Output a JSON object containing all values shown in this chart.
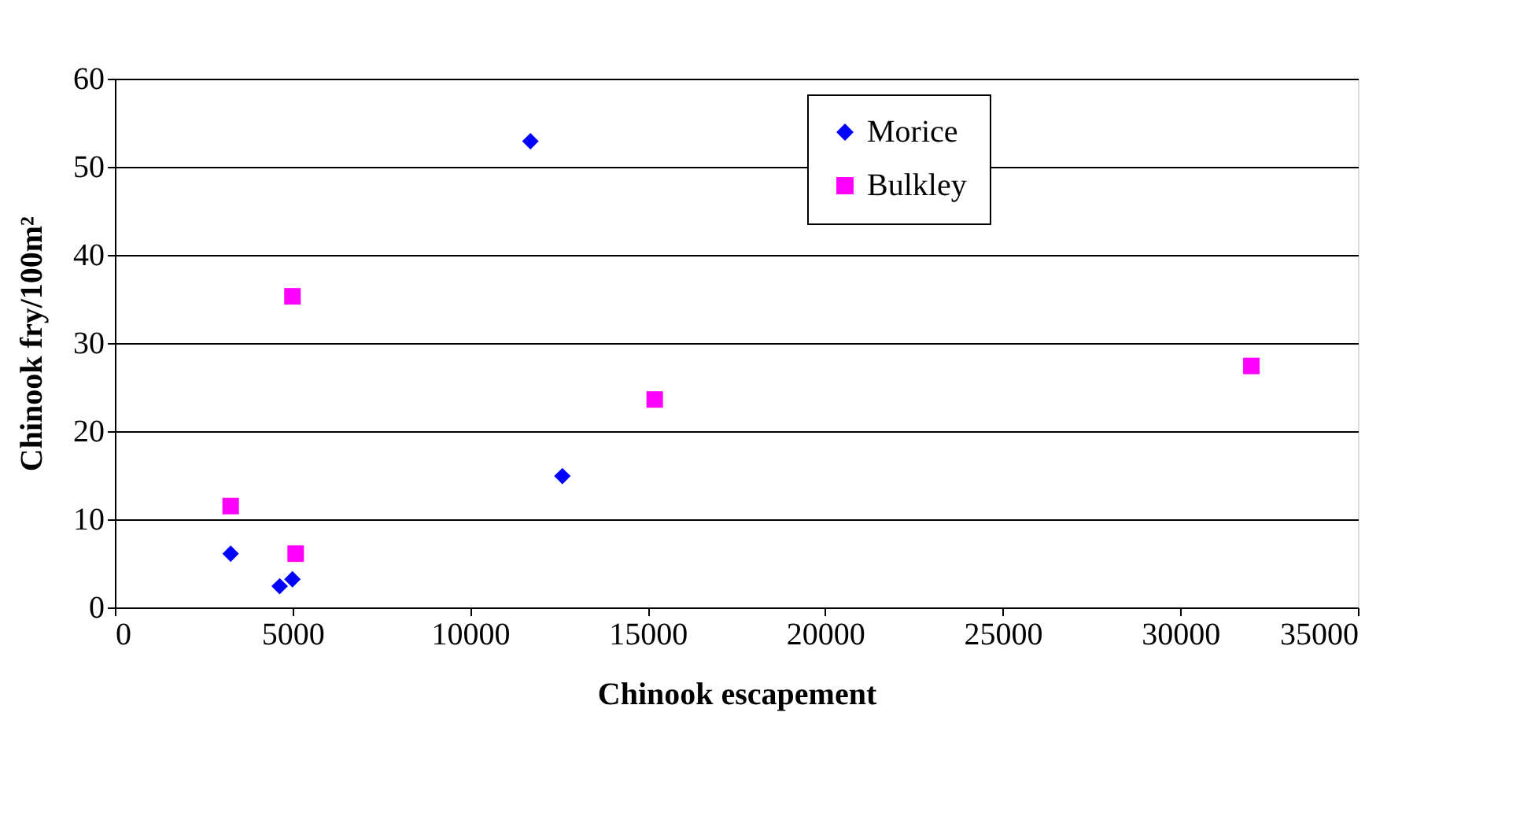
{
  "chart_data": {
    "type": "scatter",
    "xlabel": "Chinook escapement",
    "ylabel": "Chinook fry/100m²",
    "xlim": [
      0,
      35000
    ],
    "xticks": [
      0,
      5000,
      10000,
      15000,
      20000,
      25000,
      30000,
      35000
    ],
    "ylim": [
      0,
      60
    ],
    "yticks": [
      0,
      10,
      20,
      30,
      40,
      50,
      60
    ],
    "grid": "y",
    "legend": "top right",
    "series": [
      {
        "name": "Morice",
        "color": "#0000ff",
        "marker": "diamond",
        "x": [
          3260,
          4640,
          5000,
          11700,
          12600
        ],
        "values": [
          6.1,
          2.4,
          3.2,
          52.9,
          14.9
        ]
      },
      {
        "name": "Bulkley",
        "color": "#ff00ff",
        "marker": "square",
        "x": [
          3260,
          5000,
          5090,
          15200,
          32000
        ],
        "values": [
          11.5,
          35.3,
          6.1,
          23.6,
          27.4
        ]
      }
    ]
  }
}
